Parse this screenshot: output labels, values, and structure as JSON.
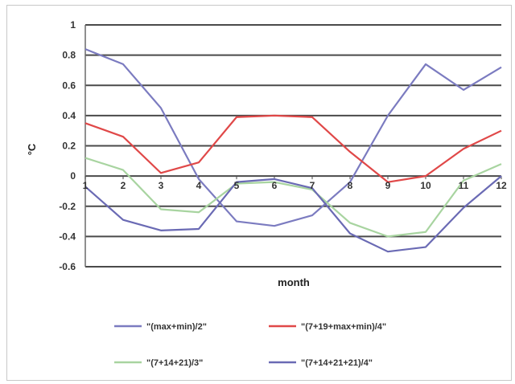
{
  "chart_data": {
    "type": "line",
    "xlabel": "month",
    "ylabel": "°C",
    "x": [
      1,
      2,
      3,
      4,
      5,
      6,
      7,
      8,
      9,
      10,
      11,
      12
    ],
    "x_tick_labels": [
      "1",
      "2",
      "3",
      "4",
      "5",
      "6",
      "7",
      "8",
      "9",
      "10",
      "11",
      "12"
    ],
    "ylim": [
      -0.6,
      1.0
    ],
    "y_ticks": [
      1,
      0.8,
      0.6,
      0.4,
      0.2,
      0,
      -0.2,
      -0.4,
      -0.6
    ],
    "y_tick_labels": [
      "1",
      "0.8",
      "0.6",
      "0.4",
      "0.2",
      "0",
      "-0.2",
      "-0.4",
      "-0.6"
    ],
    "grid": true,
    "legend_position": "bottom",
    "series": [
      {
        "name": "\"(max+min)/2\"",
        "color": "#7b7bc0",
        "values": [
          0.84,
          0.74,
          0.45,
          -0.02,
          -0.3,
          -0.33,
          -0.26,
          -0.04,
          0.4,
          0.74,
          0.57,
          0.72
        ]
      },
      {
        "name": "\"(7+19+max+min)/4\"",
        "color": "#e04848",
        "values": [
          0.35,
          0.26,
          0.02,
          0.09,
          0.39,
          0.4,
          0.39,
          0.16,
          -0.04,
          0.0,
          0.18,
          0.3
        ]
      },
      {
        "name": "\"(7+14+21)/3\"",
        "color": "#a8d4a0",
        "values": [
          0.12,
          0.04,
          -0.22,
          -0.24,
          -0.05,
          -0.04,
          -0.09,
          -0.31,
          -0.4,
          -0.37,
          -0.03,
          0.08
        ]
      },
      {
        "name": "\"(7+14+21+21)/4\"",
        "color": "#6a6ab4",
        "values": [
          -0.07,
          -0.29,
          -0.36,
          -0.35,
          -0.04,
          -0.02,
          -0.08,
          -0.38,
          -0.5,
          -0.47,
          -0.21,
          0.0
        ]
      }
    ]
  }
}
